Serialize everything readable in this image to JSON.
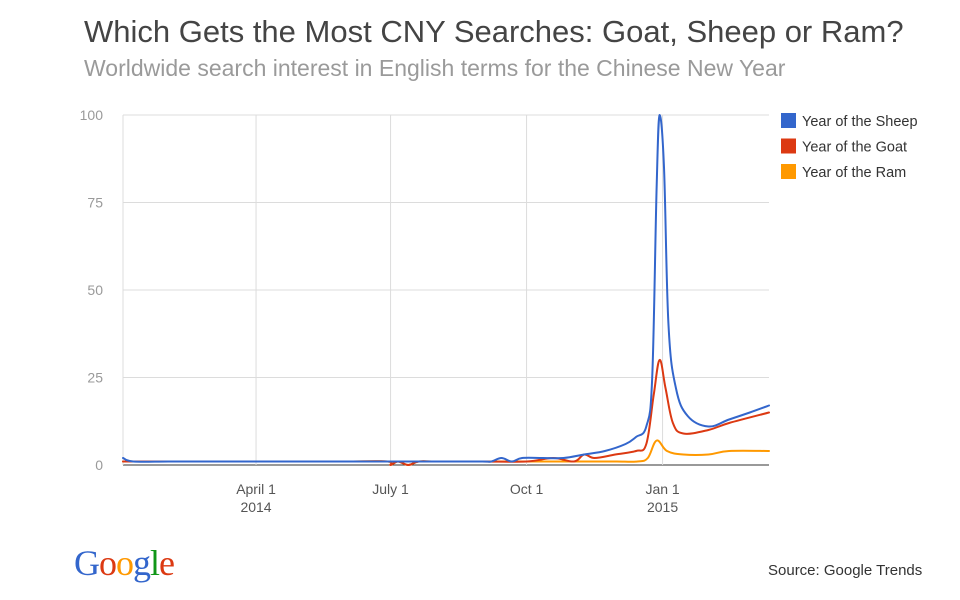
{
  "chart_data": {
    "type": "line",
    "title": "Which Gets the Most CNY Searches: Goat, Sheep or Ram?",
    "subtitle": "Worldwide search interest in English terms for the Chinese New Year",
    "source": "Source: Google Trends",
    "logo_text": "Google",
    "ylim": [
      0,
      100
    ],
    "yticks": [
      "0",
      "25",
      "50",
      "75",
      "100"
    ],
    "xlim": [
      "2014-01-01",
      "2015-03-14"
    ],
    "xticks": [
      {
        "date": "2014-04-01",
        "label": "April 1",
        "sub": "2014"
      },
      {
        "date": "2014-07-01",
        "label": "July 1",
        "sub": ""
      },
      {
        "date": "2014-10-01",
        "label": "Oct 1",
        "sub": ""
      },
      {
        "date": "2015-01-01",
        "label": "Jan 1",
        "sub": "2015"
      }
    ],
    "grid": true,
    "legend_position": "right",
    "series": [
      {
        "name": "Year of the Sheep",
        "color": "#3366cc",
        "points": [
          [
            "2014-01-01",
            2
          ],
          [
            "2014-01-08",
            1
          ],
          [
            "2014-02-01",
            1
          ],
          [
            "2014-03-01",
            1
          ],
          [
            "2014-04-01",
            1
          ],
          [
            "2014-05-01",
            1
          ],
          [
            "2014-06-01",
            1
          ],
          [
            "2014-06-29",
            1
          ],
          [
            "2014-07-06",
            1
          ],
          [
            "2014-07-20",
            1
          ],
          [
            "2014-08-01",
            1
          ],
          [
            "2014-09-01",
            1
          ],
          [
            "2014-09-07",
            1
          ],
          [
            "2014-09-14",
            2
          ],
          [
            "2014-09-21",
            1
          ],
          [
            "2014-09-28",
            2
          ],
          [
            "2014-10-12",
            2
          ],
          [
            "2014-10-26",
            2
          ],
          [
            "2014-11-09",
            3
          ],
          [
            "2014-11-23",
            4
          ],
          [
            "2014-12-07",
            6
          ],
          [
            "2014-12-14",
            8
          ],
          [
            "2014-12-21",
            11
          ],
          [
            "2014-12-25",
            25
          ],
          [
            "2014-12-28",
            80
          ],
          [
            "2014-12-30",
            100
          ],
          [
            "2015-01-02",
            85
          ],
          [
            "2015-01-05",
            40
          ],
          [
            "2015-01-10",
            22
          ],
          [
            "2015-01-18",
            14
          ],
          [
            "2015-02-01",
            11
          ],
          [
            "2015-02-15",
            13
          ],
          [
            "2015-03-01",
            15
          ],
          [
            "2015-03-14",
            17
          ]
        ]
      },
      {
        "name": "Year of the Goat",
        "color": "#dc3912",
        "points": [
          [
            "2014-01-01",
            1
          ],
          [
            "2014-02-01",
            1
          ],
          [
            "2014-03-01",
            1
          ],
          [
            "2014-04-01",
            1
          ],
          [
            "2014-05-01",
            1
          ],
          [
            "2014-06-01",
            1
          ],
          [
            "2014-06-29",
            1
          ],
          [
            "2014-07-01",
            0
          ],
          [
            "2014-07-06",
            1
          ],
          [
            "2014-07-13",
            0
          ],
          [
            "2014-07-20",
            1
          ],
          [
            "2014-08-01",
            1
          ],
          [
            "2014-09-01",
            1
          ],
          [
            "2014-10-01",
            1
          ],
          [
            "2014-10-19",
            2
          ],
          [
            "2014-11-02",
            1
          ],
          [
            "2014-11-09",
            3
          ],
          [
            "2014-11-16",
            2
          ],
          [
            "2014-11-30",
            3
          ],
          [
            "2014-12-14",
            4
          ],
          [
            "2014-12-21",
            6
          ],
          [
            "2014-12-26",
            20
          ],
          [
            "2014-12-30",
            30
          ],
          [
            "2015-01-03",
            22
          ],
          [
            "2015-01-08",
            12
          ],
          [
            "2015-01-15",
            9
          ],
          [
            "2015-02-01",
            10
          ],
          [
            "2015-02-15",
            12
          ],
          [
            "2015-03-14",
            15
          ]
        ]
      },
      {
        "name": "Year of the Ram",
        "color": "#ff9900",
        "points": [
          [
            "2014-01-01",
            1
          ],
          [
            "2014-02-01",
            1
          ],
          [
            "2014-03-01",
            1
          ],
          [
            "2014-04-01",
            1
          ],
          [
            "2014-05-01",
            1
          ],
          [
            "2014-06-01",
            1
          ],
          [
            "2014-06-29",
            1
          ],
          [
            "2014-07-01",
            0
          ],
          [
            "2014-07-06",
            1
          ],
          [
            "2014-07-13",
            0
          ],
          [
            "2014-07-20",
            1
          ],
          [
            "2014-08-01",
            1
          ],
          [
            "2014-09-01",
            1
          ],
          [
            "2014-10-01",
            1
          ],
          [
            "2014-11-01",
            1
          ],
          [
            "2014-11-15",
            1
          ],
          [
            "2014-12-01",
            1
          ],
          [
            "2014-12-15",
            1
          ],
          [
            "2014-12-22",
            2
          ],
          [
            "2014-12-28",
            7
          ],
          [
            "2015-01-04",
            4
          ],
          [
            "2015-01-15",
            3
          ],
          [
            "2015-02-01",
            3
          ],
          [
            "2015-02-15",
            4
          ],
          [
            "2015-03-14",
            4
          ]
        ]
      }
    ]
  }
}
